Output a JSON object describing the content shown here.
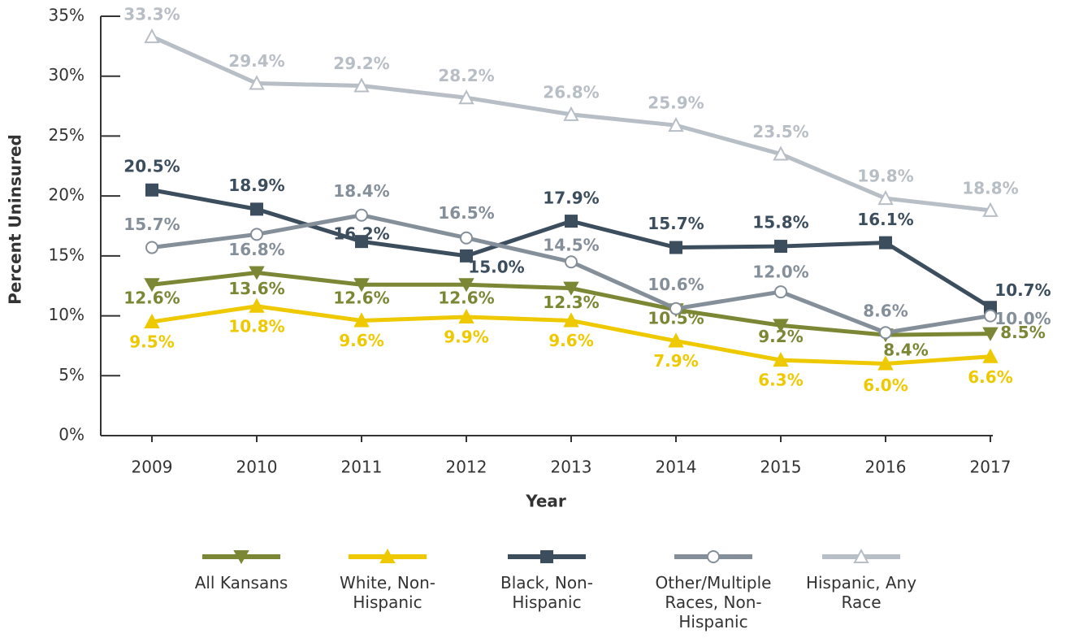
{
  "chart_data": {
    "type": "line",
    "x_label": "Year",
    "y_label": "Percent Uninsured",
    "categories": [
      "2009",
      "2010",
      "2011",
      "2012",
      "2013",
      "2014",
      "2015",
      "2016",
      "2017"
    ],
    "ylim": [
      0,
      35
    ],
    "yticks": [
      {
        "value": 0,
        "label": "0%"
      },
      {
        "value": 5,
        "label": "5%"
      },
      {
        "value": 10,
        "label": "10%"
      },
      {
        "value": 15,
        "label": "15%"
      },
      {
        "value": 20,
        "label": "20%"
      },
      {
        "value": 25,
        "label": "25%"
      },
      {
        "value": 30,
        "label": "30%"
      },
      {
        "value": 35,
        "label": "35%"
      }
    ],
    "series": [
      {
        "name": "All Kansans",
        "color": "#7b8734",
        "marker": "triangle-down",
        "values": [
          12.6,
          13.6,
          12.6,
          12.6,
          12.3,
          10.5,
          9.2,
          8.4,
          8.5
        ],
        "value_labels": [
          "12.6%",
          "13.6%",
          "12.6%",
          "12.6%",
          "12.3%",
          "10.5%",
          "9.2%",
          "8.4%",
          "8.5%"
        ]
      },
      {
        "name": "White, Non-Hispanic",
        "color": "#efc900",
        "marker": "triangle-up",
        "values": [
          9.5,
          10.8,
          9.6,
          9.9,
          9.6,
          7.9,
          6.3,
          6.0,
          6.6
        ],
        "value_labels": [
          "9.5%",
          "10.8%",
          "9.6%",
          "9.9%",
          "9.6%",
          "7.9%",
          "6.3%",
          "6.0%",
          "6.6%"
        ]
      },
      {
        "name": "Black, Non-Hispanic",
        "color": "#3c4d5e",
        "marker": "square",
        "values": [
          20.5,
          18.9,
          16.2,
          15.0,
          17.9,
          15.7,
          15.8,
          16.1,
          10.7
        ],
        "value_labels": [
          "20.5%",
          "18.9%",
          "16.2%",
          "15.0%",
          "17.9%",
          "15.7%",
          "15.8%",
          "16.1%",
          "10.7%"
        ]
      },
      {
        "name": "Other/Multiple Races, Non-Hispanic",
        "color": "#858f9a",
        "marker": "circle-open",
        "values": [
          15.7,
          16.8,
          18.4,
          16.5,
          14.5,
          10.6,
          12.0,
          8.6,
          10.0
        ],
        "value_labels": [
          "15.7%",
          "16.8%",
          "18.4%",
          "16.5%",
          "14.5%",
          "10.6%",
          "12.0%",
          "8.6%",
          "10.0%"
        ]
      },
      {
        "name": "Hispanic, Any Race",
        "color": "#b8bec5",
        "marker": "triangle-open",
        "values": [
          33.3,
          29.4,
          29.2,
          28.2,
          26.8,
          25.9,
          23.5,
          19.8,
          18.8
        ],
        "value_labels": [
          "33.3%",
          "29.4%",
          "29.2%",
          "28.2%",
          "26.8%",
          "25.9%",
          "23.5%",
          "19.8%",
          "18.8%"
        ]
      }
    ]
  }
}
